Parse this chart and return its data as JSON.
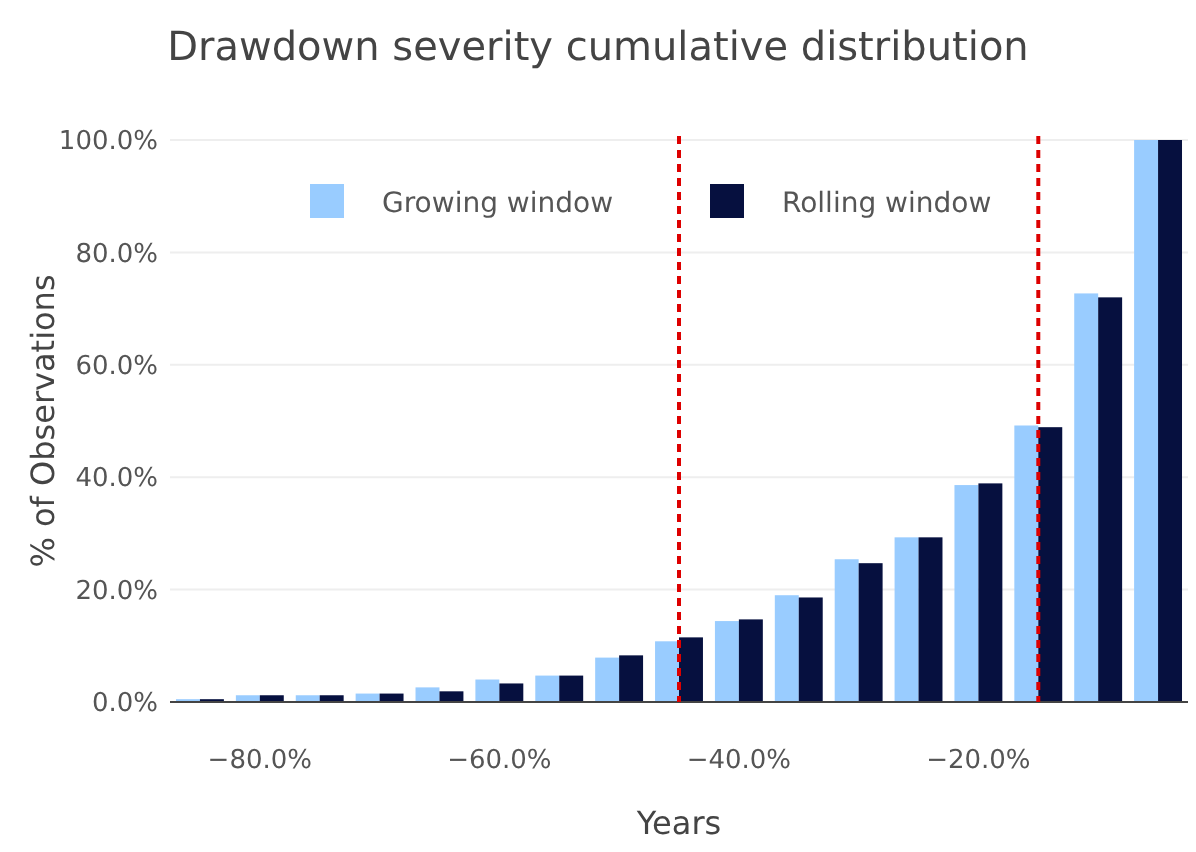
{
  "chart_data": {
    "type": "bar",
    "title": "Drawdown severity cumulative distribution",
    "xlabel": "Years",
    "ylabel": "% of Observations",
    "x": [
      -85,
      -80,
      -75,
      -70,
      -65,
      -60,
      -55,
      -50,
      -45,
      -40,
      -35,
      -30,
      -25,
      -20,
      -15,
      -10,
      -5
    ],
    "series": [
      {
        "name": "Growing window",
        "color": "#99ccff",
        "values": [
          0.5,
          1.2,
          1.2,
          1.5,
          2.6,
          4.0,
          4.7,
          7.9,
          10.8,
          14.4,
          19.0,
          25.4,
          29.3,
          38.6,
          49.2,
          72.7,
          100
        ]
      },
      {
        "name": "Rolling window",
        "color": "#06103f",
        "values": [
          0.5,
          1.2,
          1.2,
          1.5,
          1.9,
          3.3,
          4.7,
          8.3,
          11.5,
          14.7,
          18.6,
          24.7,
          29.3,
          38.9,
          48.9,
          72.0,
          100
        ]
      }
    ],
    "xlim": [
      -87.5,
      -2.5
    ],
    "xticks": [
      {
        "value": -80,
        "label": "−80.0%"
      },
      {
        "value": -60,
        "label": "−60.0%"
      },
      {
        "value": -40,
        "label": "−40.0%"
      },
      {
        "value": -20,
        "label": "−20.0%"
      }
    ],
    "ylim": [
      0,
      100
    ],
    "yticks": [
      {
        "value": 0,
        "label": "0.0%"
      },
      {
        "value": 20,
        "label": "20.0%"
      },
      {
        "value": 40,
        "label": "40.0%"
      },
      {
        "value": 60,
        "label": "60.0%"
      },
      {
        "value": 80,
        "label": "80.0%"
      },
      {
        "value": 100,
        "label": "100.0%"
      }
    ],
    "ref_lines": [
      {
        "axis": "x",
        "value": -45,
        "color": "#dd0000",
        "line_style": "dashed"
      },
      {
        "axis": "x",
        "value": -15,
        "color": "#dd0000",
        "line_style": "dashed"
      }
    ],
    "grid": "y",
    "legend": "top"
  }
}
